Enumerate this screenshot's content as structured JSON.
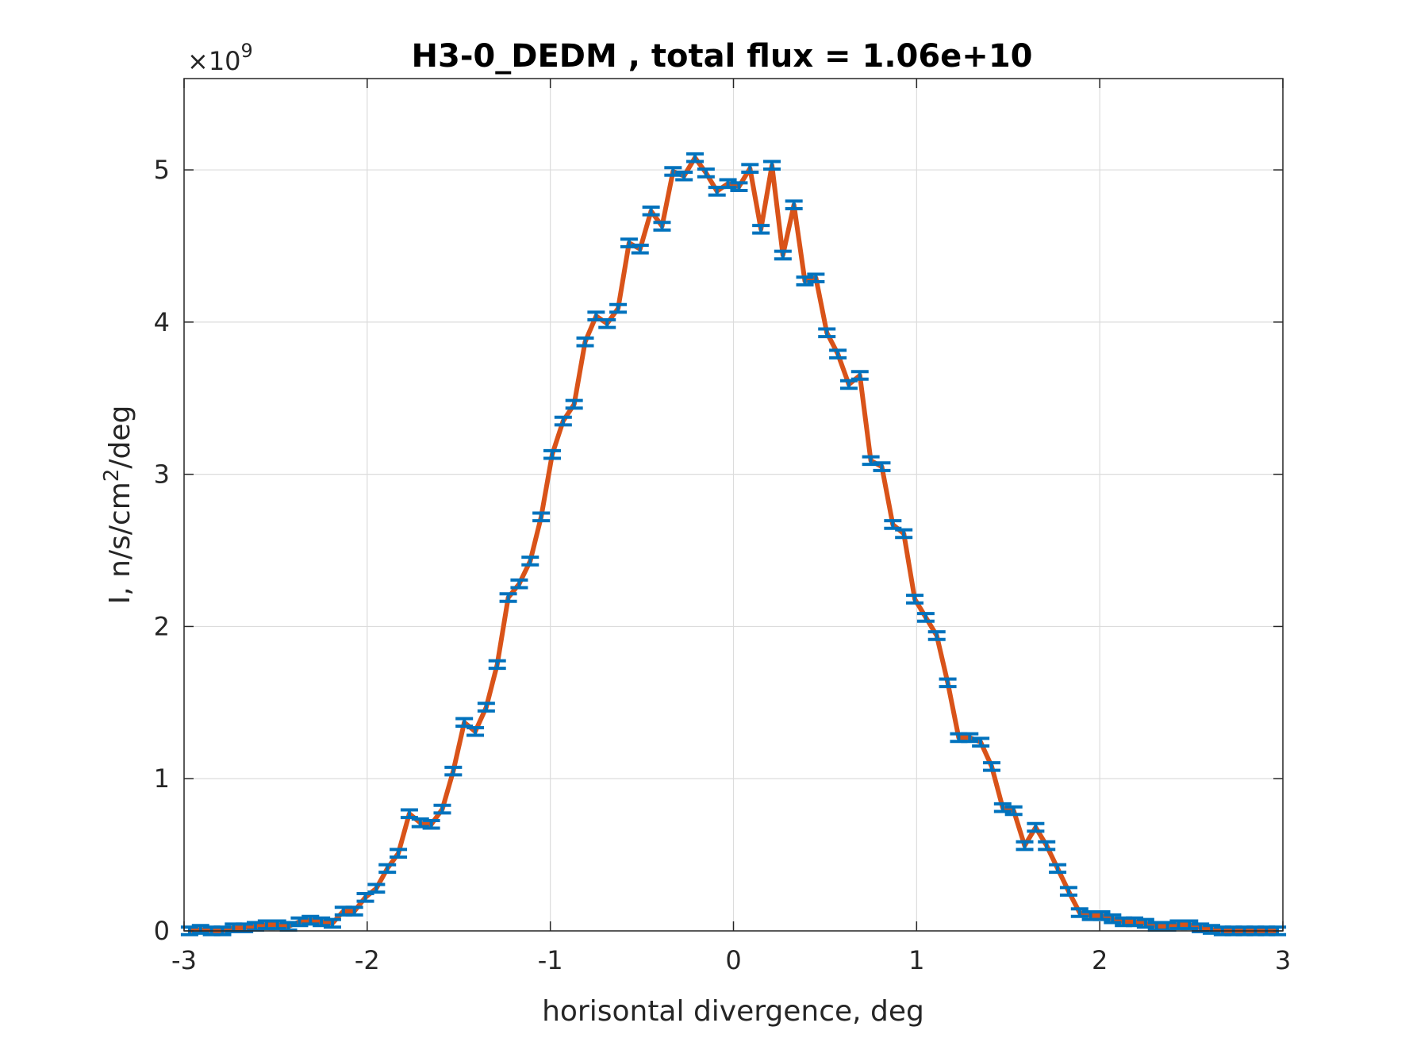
{
  "chart_data": {
    "type": "line",
    "title": "H3-0_DEDM , total flux =  1.06e+10",
    "xlabel": "horisontal divergence, deg",
    "ylabel": {
      "base": "I, n/s/cm",
      "superscript": "2",
      "suffix": "/deg"
    },
    "y_exponent": {
      "prefix": "×10",
      "power": "9"
    },
    "xlim": [
      -3,
      3
    ],
    "ylim": [
      0,
      5.6
    ],
    "x_ticks": [
      -3,
      -2,
      -1,
      0,
      1,
      2,
      3
    ],
    "x_tick_labels": [
      "-3",
      "-2",
      "-1",
      "0",
      "1",
      "2",
      "3"
    ],
    "y_ticks": [
      0,
      1,
      2,
      3,
      4,
      5
    ],
    "y_tick_labels": [
      "0",
      "1",
      "2",
      "3",
      "4",
      "5"
    ],
    "grid": true,
    "line_color": "#D95319",
    "errorbar_color": "#0072BD",
    "series": [
      {
        "x": [
          -2.97,
          -2.91,
          -2.85,
          -2.79,
          -2.73,
          -2.67,
          -2.61,
          -2.55,
          -2.49,
          -2.43,
          -2.37,
          -2.31,
          -2.25,
          -2.19,
          -2.13,
          -2.07,
          -2.01,
          -1.95,
          -1.89,
          -1.83,
          -1.77,
          -1.71,
          -1.65,
          -1.59,
          -1.53,
          -1.47,
          -1.41,
          -1.35,
          -1.29,
          -1.23,
          -1.17,
          -1.11,
          -1.05,
          -0.99,
          -0.93,
          -0.87,
          -0.81,
          -0.75,
          -0.69,
          -0.63,
          -0.57,
          -0.51,
          -0.45,
          -0.39,
          -0.33,
          -0.27,
          -0.21,
          -0.15,
          -0.09,
          -0.03,
          0.03,
          0.09,
          0.15,
          0.21,
          0.27,
          0.33,
          0.39,
          0.45,
          0.51,
          0.57,
          0.63,
          0.69,
          0.75,
          0.81,
          0.87,
          0.93,
          0.99,
          1.05,
          1.11,
          1.17,
          1.23,
          1.29,
          1.35,
          1.41,
          1.47,
          1.53,
          1.59,
          1.65,
          1.71,
          1.77,
          1.83,
          1.89,
          1.95,
          2.01,
          2.07,
          2.13,
          2.19,
          2.25,
          2.31,
          2.37,
          2.43,
          2.49,
          2.55,
          2.61,
          2.67,
          2.73,
          2.79,
          2.85,
          2.91,
          2.97
        ],
        "y": [
          0.0,
          0.01,
          0.0,
          0.0,
          0.02,
          0.02,
          0.03,
          0.04,
          0.04,
          0.03,
          0.06,
          0.07,
          0.06,
          0.05,
          0.13,
          0.13,
          0.22,
          0.28,
          0.41,
          0.51,
          0.77,
          0.71,
          0.7,
          0.8,
          1.05,
          1.37,
          1.31,
          1.47,
          1.75,
          2.19,
          2.28,
          2.43,
          2.72,
          3.13,
          3.35,
          3.46,
          3.87,
          4.04,
          3.99,
          4.09,
          4.52,
          4.48,
          4.73,
          4.63,
          4.99,
          4.96,
          5.08,
          4.98,
          4.86,
          4.91,
          4.89,
          5.01,
          4.61,
          5.03,
          4.44,
          4.77,
          4.27,
          4.29,
          3.93,
          3.79,
          3.59,
          3.65,
          3.09,
          3.05,
          2.67,
          2.61,
          2.18,
          2.06,
          1.94,
          1.63,
          1.27,
          1.27,
          1.24,
          1.08,
          0.81,
          0.79,
          0.56,
          0.68,
          0.56,
          0.41,
          0.26,
          0.12,
          0.1,
          0.1,
          0.08,
          0.06,
          0.06,
          0.05,
          0.03,
          0.03,
          0.04,
          0.04,
          0.02,
          0.01,
          0.0,
          0.0,
          0.0,
          0.0,
          0.0,
          0.0
        ],
        "error": 0.025
      }
    ]
  }
}
